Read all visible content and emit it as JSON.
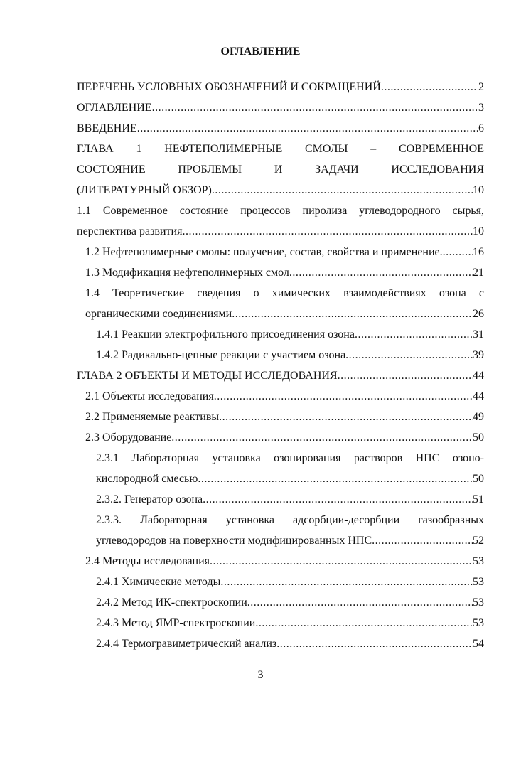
{
  "header": {
    "title": "ОГЛАВЛЕНИЕ"
  },
  "entries": [
    {
      "lines": [
        "ПЕРЕЧЕНЬ УСЛОВНЫХ ОБОЗНАЧЕНИЙ И СОКРАЩЕНИЙ"
      ],
      "page": "2"
    },
    {
      "lines": [
        "ОГЛАВЛЕНИЕ"
      ],
      "page": "3"
    },
    {
      "lines": [
        "ВВЕДЕНИЕ"
      ],
      "page": "6"
    },
    {
      "lines": [
        "ГЛАВА 1 НЕФТЕПОЛИМЕРНЫЕ СМОЛЫ – СОВРЕМЕННОЕ",
        "СОСТОЯНИЕ ПРОБЛЕМЫ И ЗАДАЧИ ИССЛЕДОВАНИЯ",
        "(ЛИТЕРАТУРНЫЙ ОБЗОР)"
      ],
      "page": "10"
    },
    {
      "lines": [
        "1.1 Современное состояние процессов пиролиза углеводородного сырья,",
        "перспектива развития"
      ],
      "page": "10"
    },
    {
      "lines": [
        "1.2 Нефтеполимерные смолы: получение, состав, свойства и применение."
      ],
      "page": "16"
    },
    {
      "lines": [
        "1.3 Модификация нефтеполимерных смол"
      ],
      "page": "21"
    },
    {
      "lines": [
        "1.4 Теоретические сведения о химических взаимодействиях озона с",
        "органическими соединениями"
      ],
      "page": "26"
    },
    {
      "lines": [
        "1.4.1 Реакции электрофильного присоединения озона"
      ],
      "page": "31"
    },
    {
      "lines": [
        "1.4.2 Радикально-цепные реакции с участием озона"
      ],
      "page": "39"
    },
    {
      "lines": [
        "ГЛАВА 2 ОБЪЕКТЫ И МЕТОДЫ ИССЛЕДОВАНИЯ"
      ],
      "page": "44"
    },
    {
      "lines": [
        "2.1 Объекты исследования"
      ],
      "page": "44"
    },
    {
      "lines": [
        "2.2 Применяемые реактивы"
      ],
      "page": "49"
    },
    {
      "lines": [
        "2.3 Оборудование"
      ],
      "page": "50"
    },
    {
      "lines": [
        "2.3.1 Лабораторная установка озонирования растворов НПС озоно-",
        "кислородной смесью"
      ],
      "page": "50"
    },
    {
      "lines": [
        "2.3.2. Генератор озона"
      ],
      "page": "51"
    },
    {
      "lines": [
        "2.3.3. Лабораторная установка адсорбции-десорбции газообразных",
        "углеводородов на поверхности модифицированных НПС"
      ],
      "page": "52"
    },
    {
      "lines": [
        "2.4 Методы исследования"
      ],
      "page": "53"
    },
    {
      "lines": [
        "2.4.1 Химические методы"
      ],
      "page": "53"
    },
    {
      "lines": [
        "2.4.2 Метод ИК-спектроскопии"
      ],
      "page": "53"
    },
    {
      "lines": [
        "2.4.3 Метод ЯМР-спектроскопии"
      ],
      "page": "53"
    },
    {
      "lines": [
        "2.4.4 Термогравиметрический анализ"
      ],
      "page": "54"
    }
  ],
  "footer": {
    "page_number": "3"
  }
}
